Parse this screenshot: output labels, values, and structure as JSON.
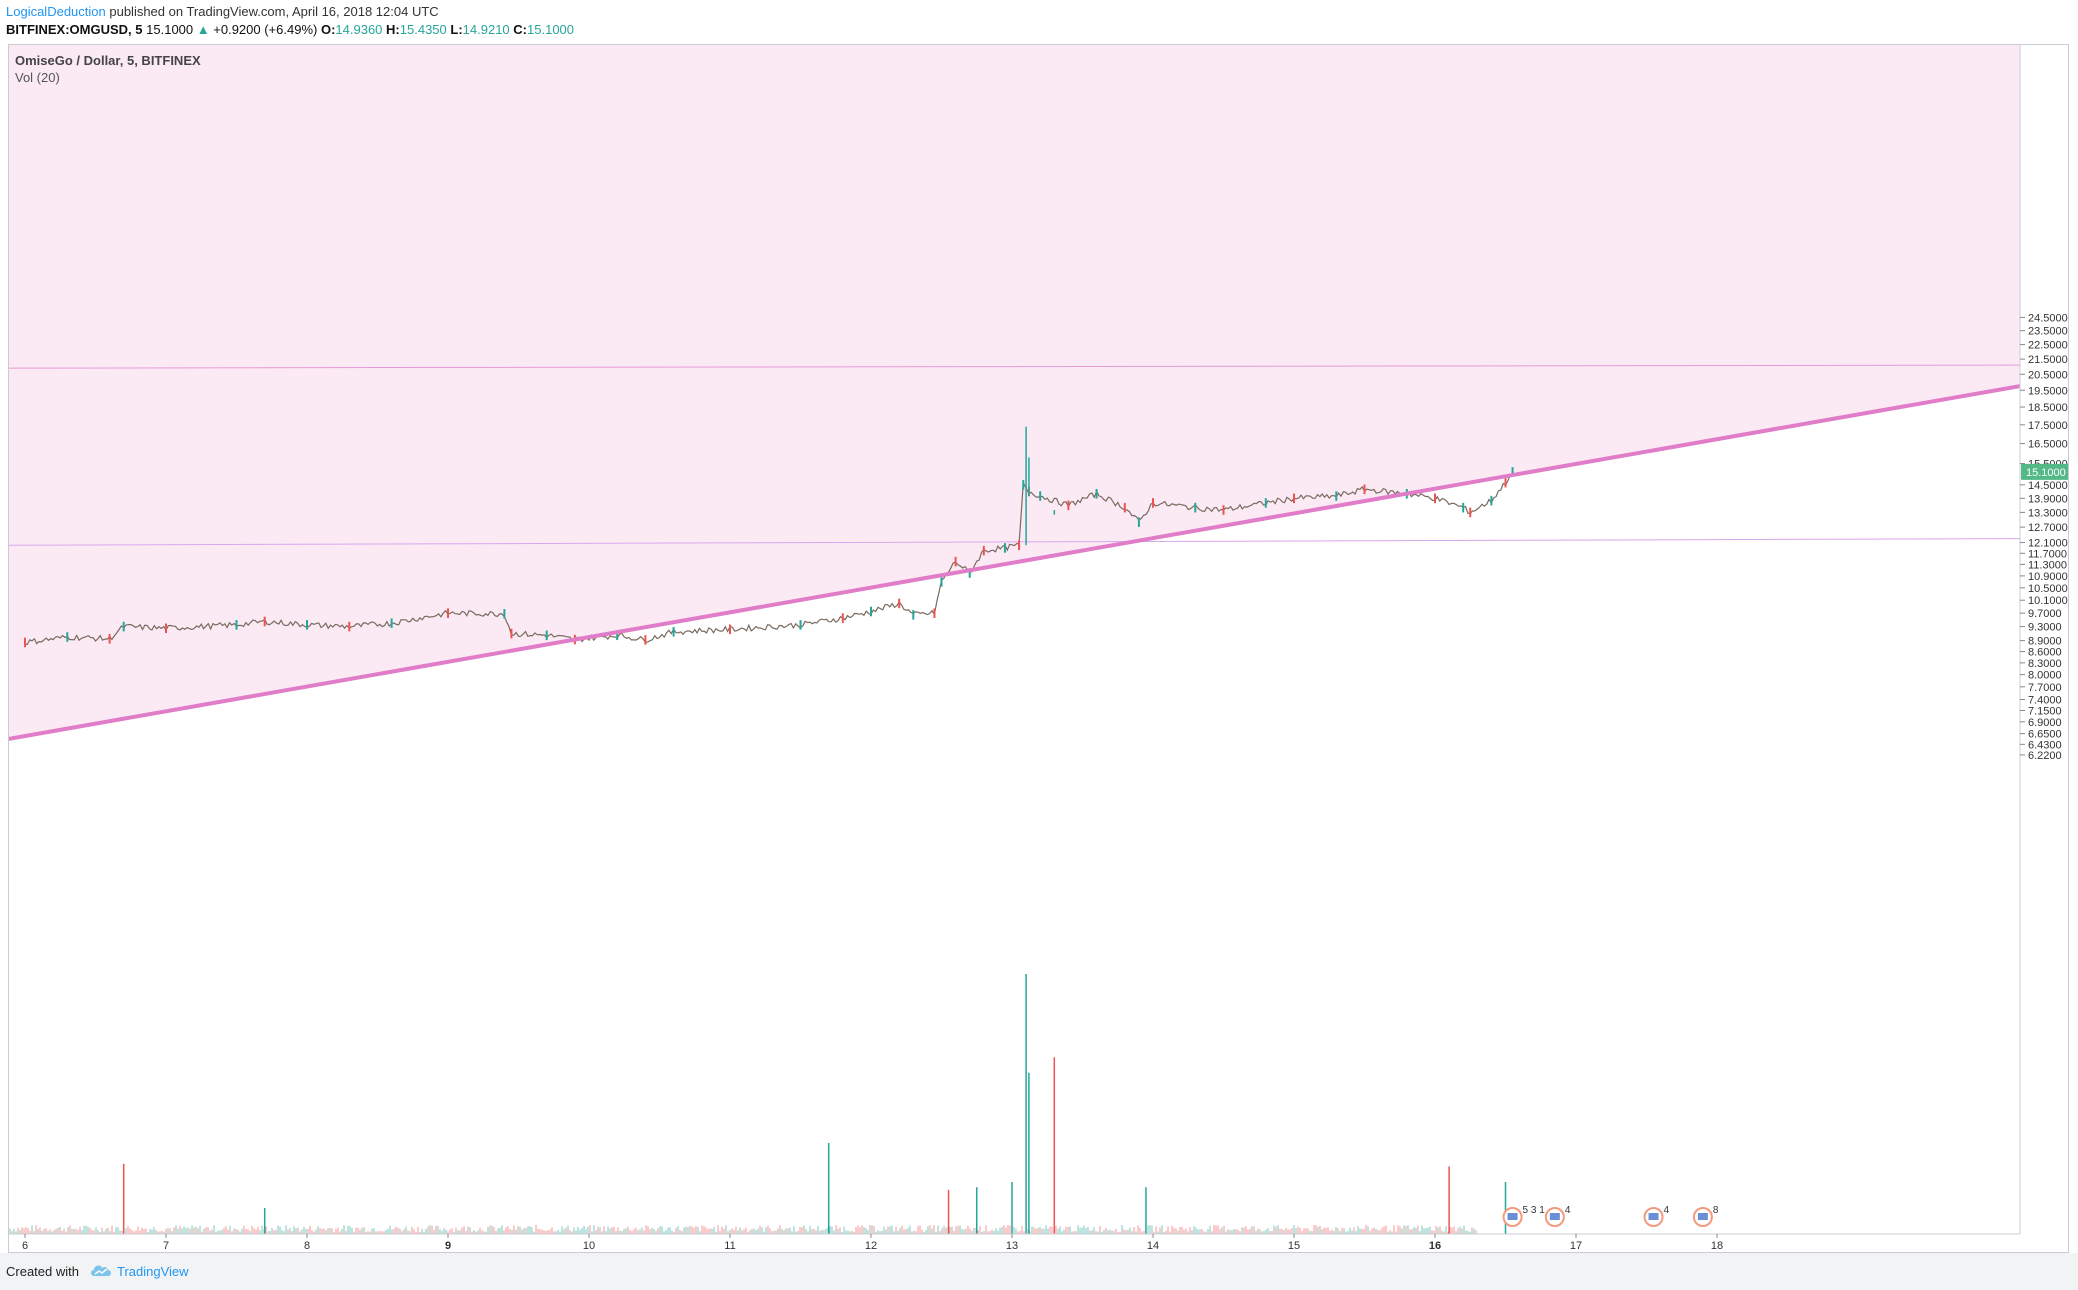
{
  "header": {
    "author": "LogicalDeduction",
    "published": "published on TradingView.com, April 16, 2018 12:04 UTC"
  },
  "ohlc": {
    "symbol": "BITFINEX:OMGUSD, 5",
    "last": "15.1000",
    "change": "+0.9200 (+6.49%)",
    "up_arrow": "▲",
    "o_label": "O:",
    "o_value": "14.9360",
    "h_label": "H:",
    "h_value": "15.4350",
    "l_label": "L:",
    "l_value": "14.9210",
    "c_label": "C:",
    "c_value": "15.1000"
  },
  "legend": {
    "title": "OmiseGo / Dollar, 5, BITFINEX",
    "volume": "Vol (20)"
  },
  "footer": {
    "created_with": "Created with",
    "brand": "TradingView",
    "brand_icon": "tradingview-cloud-icon"
  },
  "colors": {
    "zone_fill": "#fbeaf4",
    "trendline": "#e07cc8",
    "channel_line": "#e79bd6",
    "channel_line_low": "#d7a7ee",
    "up_candle": "#26a69a",
    "down_candle": "#ef5350",
    "price_tag": "#53b987"
  },
  "chart_data": {
    "type": "candlestick",
    "symbol": "OMGUSD",
    "exchange": "BITFINEX",
    "interval": "5",
    "current_price": "15.1000",
    "x_ticks": [
      "6",
      "7",
      "8",
      "9",
      "10",
      "11",
      "12",
      "13",
      "14",
      "15",
      "16",
      "17",
      "18"
    ],
    "x_ticks_bold": [
      "9",
      "16"
    ],
    "y_ticks": [
      "24.5000",
      "23.5000",
      "22.5000",
      "21.5000",
      "20.5000",
      "19.5000",
      "18.5000",
      "17.5000",
      "16.5000",
      "15.5000",
      "14.5000",
      "13.9000",
      "13.3000",
      "12.7000",
      "12.1000",
      "11.7000",
      "11.3000",
      "10.9000",
      "10.5000",
      "10.1000",
      "9.7000",
      "9.3000",
      "8.9000",
      "8.6000",
      "8.3000",
      "8.0000",
      "7.7000",
      "7.4000",
      "7.1500",
      "6.9000",
      "6.6500",
      "6.4300",
      "6.2200"
    ],
    "y_scale": "log",
    "price_path": [
      [
        6.0,
        8.85
      ],
      [
        6.3,
        9.0
      ],
      [
        6.6,
        8.95
      ],
      [
        6.7,
        9.3
      ],
      [
        7.0,
        9.25
      ],
      [
        7.5,
        9.35
      ],
      [
        7.7,
        9.45
      ],
      [
        8.0,
        9.35
      ],
      [
        8.3,
        9.3
      ],
      [
        8.6,
        9.4
      ],
      [
        9.0,
        9.7
      ],
      [
        9.4,
        9.68
      ],
      [
        9.45,
        9.1
      ],
      [
        9.7,
        9.05
      ],
      [
        9.9,
        8.93
      ],
      [
        10.2,
        9.05
      ],
      [
        10.4,
        8.92
      ],
      [
        10.6,
        9.15
      ],
      [
        11.0,
        9.22
      ],
      [
        11.5,
        9.35
      ],
      [
        11.8,
        9.55
      ],
      [
        12.0,
        9.75
      ],
      [
        12.2,
        10.0
      ],
      [
        12.3,
        9.65
      ],
      [
        12.45,
        9.7
      ],
      [
        12.5,
        10.7
      ],
      [
        12.6,
        11.4
      ],
      [
        12.7,
        11.0
      ],
      [
        12.8,
        11.8
      ],
      [
        12.95,
        11.9
      ],
      [
        13.05,
        12.0
      ],
      [
        13.08,
        14.5
      ],
      [
        13.12,
        14.2
      ],
      [
        13.2,
        14.0
      ],
      [
        13.4,
        13.6
      ],
      [
        13.6,
        14.1
      ],
      [
        13.8,
        13.5
      ],
      [
        13.9,
        12.9
      ],
      [
        14.0,
        13.7
      ],
      [
        14.3,
        13.5
      ],
      [
        14.5,
        13.4
      ],
      [
        14.8,
        13.7
      ],
      [
        15.0,
        13.9
      ],
      [
        15.3,
        14.0
      ],
      [
        15.5,
        14.3
      ],
      [
        15.8,
        14.1
      ],
      [
        16.0,
        13.9
      ],
      [
        16.2,
        13.5
      ],
      [
        16.25,
        13.3
      ],
      [
        16.4,
        13.8
      ],
      [
        16.5,
        14.6
      ],
      [
        16.55,
        15.1
      ]
    ],
    "spikes": [
      {
        "day": 13.1,
        "high": 17.4,
        "low": 12.0
      },
      {
        "day": 13.12,
        "high": 15.8,
        "low": 14.0
      },
      {
        "day": 13.3,
        "high": 13.4,
        "low": 13.2
      }
    ],
    "volume_series": {
      "name": "Vol (20)",
      "spikes": [
        {
          "day": 6.7,
          "value": 0.27,
          "color": "red"
        },
        {
          "day": 7.7,
          "value": 0.1,
          "color": "green"
        },
        {
          "day": 11.7,
          "value": 0.35,
          "color": "green"
        },
        {
          "day": 13.1,
          "value": 1.0,
          "color": "green"
        },
        {
          "day": 13.12,
          "value": 0.62,
          "color": "green"
        },
        {
          "day": 13.3,
          "value": 0.68,
          "color": "red"
        },
        {
          "day": 13.0,
          "value": 0.2,
          "color": "green"
        },
        {
          "day": 12.75,
          "value": 0.18,
          "color": "green"
        },
        {
          "day": 16.1,
          "value": 0.26,
          "color": "red"
        },
        {
          "day": 16.5,
          "value": 0.2,
          "color": "green"
        },
        {
          "day": 13.95,
          "value": 0.18,
          "color": "green"
        },
        {
          "day": 12.55,
          "value": 0.17,
          "color": "red"
        }
      ]
    },
    "drawings": {
      "shaded_zone": "pink fill above rising trendline",
      "upper_channel_line": {
        "start": [
          6.0,
          20.9
        ],
        "end": [
          19.3,
          21.1
        ]
      },
      "lower_channel_line": {
        "start": [
          6.0,
          12.0
        ],
        "end": [
          19.3,
          12.25
        ]
      },
      "trendline": {
        "start": [
          6.0,
          6.6
        ],
        "end": [
          19.3,
          18.5
        ]
      }
    },
    "event_markers": [
      {
        "day": 16.55,
        "label": "5 3 1"
      },
      {
        "day": 16.85,
        "label": "4"
      },
      {
        "day": 17.55,
        "label": "4"
      },
      {
        "day": 17.9,
        "label": "8"
      }
    ]
  }
}
